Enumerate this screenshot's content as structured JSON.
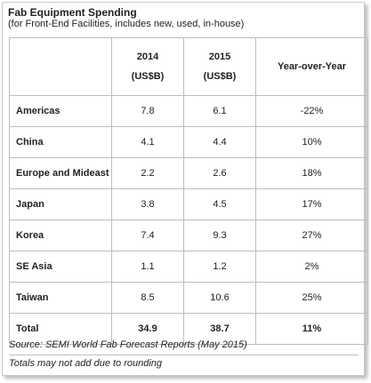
{
  "title": "Fab Equipment Spending",
  "subtitle": "(for Front-End Facilities, includes new, used, in-house)",
  "header": {
    "col1_line1": "2014",
    "col1_line2": "(US$B)",
    "col2_line1": "2015",
    "col2_line2": "(US$B)",
    "col3": "Year-over-Year"
  },
  "rows": [
    {
      "region": "Americas",
      "y2014": "7.8",
      "y2015": "6.1",
      "yoy": "-22%"
    },
    {
      "region": "China",
      "y2014": "4.1",
      "y2015": "4.4",
      "yoy": "10%"
    },
    {
      "region": "Europe and Mideast",
      "y2014": "2.2",
      "y2015": "2.6",
      "yoy": "18%"
    },
    {
      "region": "Japan",
      "y2014": "3.8",
      "y2015": "4.5",
      "yoy": "17%"
    },
    {
      "region": "Korea",
      "y2014": "7.4",
      "y2015": "9.3",
      "yoy": "27%"
    },
    {
      "region": "SE Asia",
      "y2014": "1.1",
      "y2015": "1.2",
      "yoy": "2%"
    },
    {
      "region": "Taiwan",
      "y2014": "8.5",
      "y2015": "10.6",
      "yoy": "25%"
    }
  ],
  "total": {
    "region": "Total",
    "y2014": "34.9",
    "y2015": "38.7",
    "yoy": "11%"
  },
  "source_note": "Source: SEMI World Fab Forecast Reports (May 2015)",
  "rounding_note": "Totals may not add due to rounding"
}
